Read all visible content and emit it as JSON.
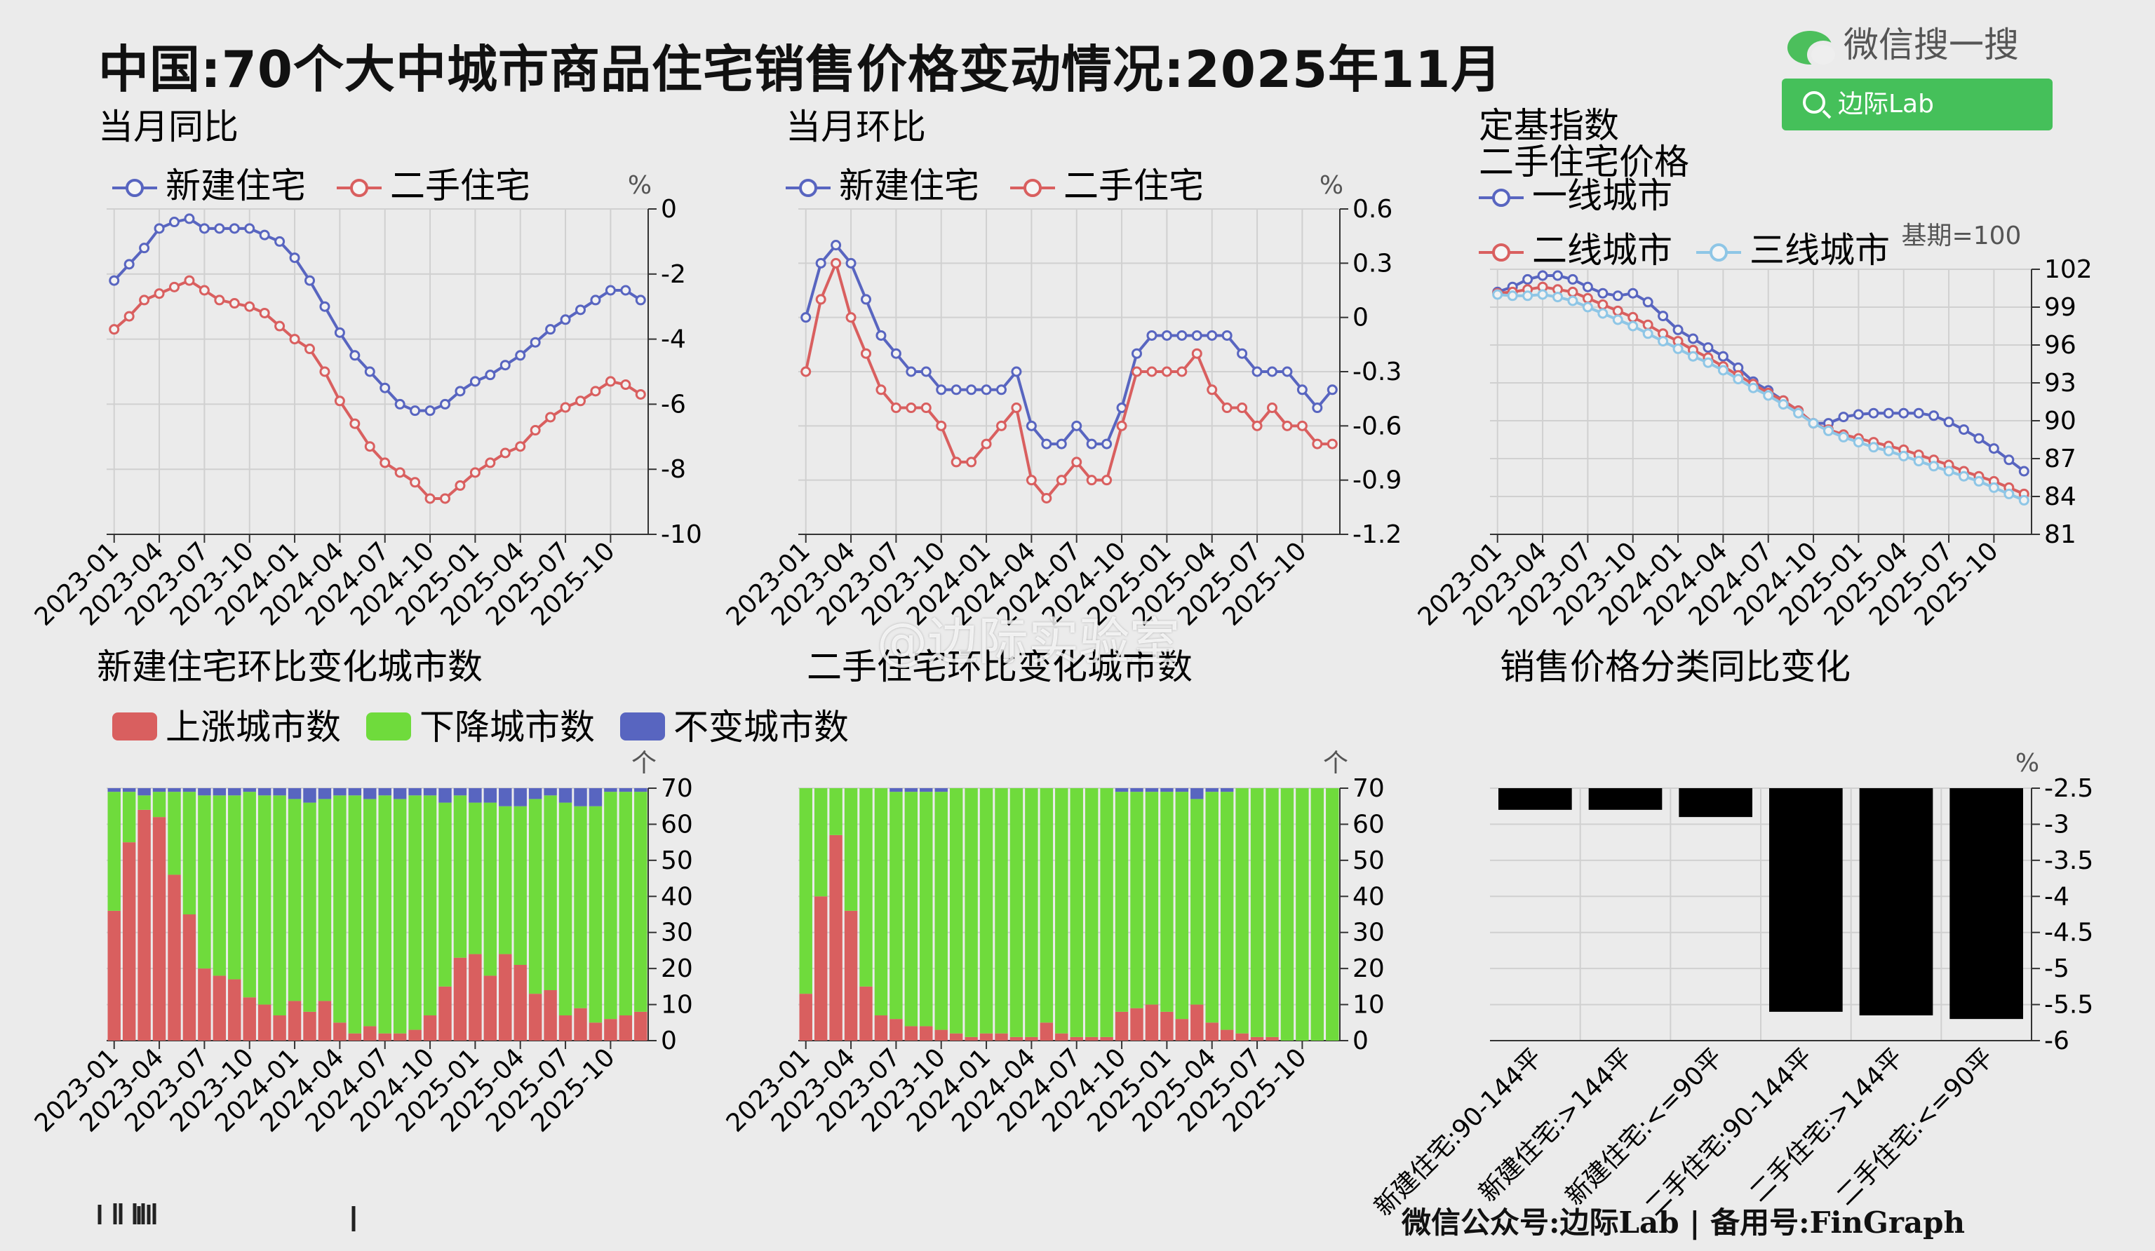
{
  "page": {
    "title": "中国:70个大中城市商品住宅销售价格变动情况:2025年11月",
    "wechat_label": "微信搜一搜",
    "search_label": "边际Lab",
    "watermark": "@边际实验室",
    "footer": "微信公众号:边际Lab | 备用号:FinGraph",
    "colors": {
      "blue": "#5865c0",
      "red": "#d95f5f",
      "lightblue": "#8ec6e6",
      "green": "#6fdb3c",
      "black": "#000000",
      "wechat_green": "#45c05a"
    }
  },
  "chart_data": [
    {
      "id": "yoy",
      "type": "line",
      "title": "当月同比",
      "unit": "%",
      "ylim": [
        -10,
        0
      ],
      "yticks": [
        0,
        -2,
        -4,
        -6,
        -8,
        -10
      ],
      "x_tick_labels": [
        "2023-01",
        "2023-04",
        "2023-07",
        "2023-10",
        "2024-01",
        "2024-04",
        "2024-07",
        "2024-10",
        "2025-01",
        "2025-04",
        "2025-07",
        "2025-10"
      ],
      "series": [
        {
          "name": "新建住宅",
          "color": "#5865c0",
          "values": [
            -2.2,
            -1.7,
            -1.2,
            -0.6,
            -0.4,
            -0.3,
            -0.6,
            -0.6,
            -0.6,
            -0.6,
            -0.8,
            -1.0,
            -1.5,
            -2.2,
            -3.0,
            -3.8,
            -4.5,
            -5.0,
            -5.5,
            -6.0,
            -6.2,
            -6.2,
            -6.0,
            -5.6,
            -5.3,
            -5.1,
            -4.8,
            -4.5,
            -4.1,
            -3.7,
            -3.4,
            -3.1,
            -2.8,
            -2.5,
            -2.5,
            -2.8
          ]
        },
        {
          "name": "二手住宅",
          "color": "#d95f5f",
          "values": [
            -3.7,
            -3.3,
            -2.8,
            -2.6,
            -2.4,
            -2.2,
            -2.5,
            -2.8,
            -2.9,
            -3.0,
            -3.2,
            -3.6,
            -4.0,
            -4.3,
            -5.0,
            -5.9,
            -6.6,
            -7.3,
            -7.8,
            -8.1,
            -8.4,
            -8.9,
            -8.9,
            -8.5,
            -8.1,
            -7.8,
            -7.5,
            -7.3,
            -6.8,
            -6.4,
            -6.1,
            -5.9,
            -5.6,
            -5.3,
            -5.4,
            -5.7
          ]
        }
      ]
    },
    {
      "id": "mom",
      "type": "line",
      "title": "当月环比",
      "unit": "%",
      "ylim": [
        -1.2,
        0.6
      ],
      "yticks": [
        0.6,
        0.3,
        0,
        -0.3,
        -0.6,
        -0.9,
        -1.2
      ],
      "x_tick_labels": [
        "2023-01",
        "2023-04",
        "2023-07",
        "2023-10",
        "2024-01",
        "2024-04",
        "2024-07",
        "2024-10",
        "2025-01",
        "2025-04",
        "2025-07",
        "2025-10"
      ],
      "series": [
        {
          "name": "新建住宅",
          "color": "#5865c0",
          "values": [
            0.0,
            0.3,
            0.4,
            0.3,
            0.1,
            -0.1,
            -0.2,
            -0.3,
            -0.3,
            -0.4,
            -0.4,
            -0.4,
            -0.4,
            -0.4,
            -0.3,
            -0.6,
            -0.7,
            -0.7,
            -0.6,
            -0.7,
            -0.7,
            -0.5,
            -0.2,
            -0.1,
            -0.1,
            -0.1,
            -0.1,
            -0.1,
            -0.1,
            -0.2,
            -0.3,
            -0.3,
            -0.3,
            -0.4,
            -0.5,
            -0.4
          ]
        },
        {
          "name": "二手住宅",
          "color": "#d95f5f",
          "values": [
            -0.3,
            0.1,
            0.3,
            0.0,
            -0.2,
            -0.4,
            -0.5,
            -0.5,
            -0.5,
            -0.6,
            -0.8,
            -0.8,
            -0.7,
            -0.6,
            -0.5,
            -0.9,
            -1.0,
            -0.9,
            -0.8,
            -0.9,
            -0.9,
            -0.6,
            -0.3,
            -0.3,
            -0.3,
            -0.3,
            -0.2,
            -0.4,
            -0.5,
            -0.5,
            -0.6,
            -0.5,
            -0.6,
            -0.6,
            -0.7,
            -0.7
          ]
        }
      ]
    },
    {
      "id": "index",
      "type": "line",
      "title": "定基指数",
      "subtitle": "二手住宅价格",
      "unit": "基期=100",
      "ylim": [
        81,
        102
      ],
      "yticks": [
        102,
        99,
        96,
        93,
        90,
        87,
        84,
        81
      ],
      "x_tick_labels": [
        "2023-01",
        "2023-04",
        "2023-07",
        "2023-10",
        "2024-01",
        "2024-04",
        "2024-07",
        "2024-10",
        "2025-01",
        "2025-04",
        "2025-07",
        "2025-10"
      ],
      "series": [
        {
          "name": "一线城市",
          "color": "#5865c0",
          "values": [
            100.2,
            100.6,
            101.2,
            101.5,
            101.5,
            101.2,
            100.6,
            100.1,
            99.9,
            100.1,
            99.4,
            98.3,
            97.2,
            96.5,
            95.8,
            95.1,
            94.2,
            93.1,
            92.4,
            91.6,
            90.8,
            89.8,
            89.8,
            90.3,
            90.5,
            90.6,
            90.6,
            90.6,
            90.6,
            90.4,
            89.9,
            89.3,
            88.6,
            87.8,
            86.9,
            86.0
          ]
        },
        {
          "name": "二线城市",
          "color": "#d95f5f",
          "values": [
            100.1,
            100.2,
            100.4,
            100.6,
            100.4,
            100.2,
            99.7,
            99.2,
            98.7,
            98.2,
            97.6,
            96.9,
            96.3,
            95.6,
            95.0,
            94.3,
            93.6,
            92.9,
            92.2,
            91.6,
            90.8,
            89.8,
            89.3,
            88.9,
            88.6,
            88.3,
            88.0,
            87.7,
            87.3,
            86.9,
            86.5,
            86.0,
            85.6,
            85.2,
            84.7,
            84.2
          ]
        },
        {
          "name": "三线城市",
          "color": "#8ec6e6",
          "values": [
            100.0,
            99.9,
            99.9,
            100.0,
            99.8,
            99.5,
            99.0,
            98.5,
            98.0,
            97.5,
            96.9,
            96.3,
            95.7,
            95.1,
            94.6,
            94.0,
            93.3,
            92.6,
            92.0,
            91.3,
            90.6,
            89.8,
            89.2,
            88.7,
            88.3,
            87.9,
            87.6,
            87.2,
            86.8,
            86.4,
            86.0,
            85.6,
            85.2,
            84.7,
            84.2,
            83.7
          ]
        }
      ]
    },
    {
      "id": "new_counts",
      "type": "bar",
      "stacked": true,
      "title": "新建住宅环比变化城市数",
      "unit": "个",
      "ylim": [
        0,
        70
      ],
      "yticks": [
        70,
        60,
        50,
        40,
        30,
        20,
        10,
        0
      ],
      "x_tick_labels": [
        "2023-01",
        "2023-04",
        "2023-07",
        "2023-10",
        "2024-01",
        "2024-04",
        "2024-07",
        "2024-10",
        "2025-01",
        "2025-04",
        "2025-07",
        "2025-10"
      ],
      "series": [
        {
          "name": "上涨城市数",
          "color": "#d95f5f",
          "values": [
            36,
            55,
            64,
            62,
            46,
            35,
            20,
            18,
            17,
            12,
            10,
            7,
            11,
            8,
            11,
            5,
            2,
            4,
            2,
            2,
            3,
            7,
            15,
            23,
            24,
            18,
            24,
            21,
            13,
            14,
            7,
            9,
            5,
            6,
            7,
            8
          ]
        },
        {
          "name": "下降城市数",
          "color": "#6fdb3c",
          "values": [
            33,
            14,
            4,
            7,
            23,
            34,
            48,
            50,
            51,
            57,
            58,
            61,
            56,
            58,
            56,
            63,
            66,
            63,
            66,
            65,
            65,
            61,
            51,
            45,
            42,
            48,
            41,
            44,
            54,
            54,
            59,
            56,
            60,
            63,
            62,
            61
          ]
        },
        {
          "name": "不变城市数",
          "color": "#5865c0",
          "values": [
            1,
            1,
            2,
            1,
            1,
            1,
            2,
            2,
            2,
            1,
            2,
            2,
            3,
            4,
            3,
            2,
            2,
            3,
            2,
            3,
            2,
            2,
            4,
            2,
            4,
            4,
            5,
            5,
            3,
            2,
            4,
            5,
            5,
            1,
            1,
            1
          ]
        }
      ]
    },
    {
      "id": "second_counts",
      "type": "bar",
      "stacked": true,
      "title": "二手住宅环比变化城市数",
      "unit": "个",
      "ylim": [
        0,
        70
      ],
      "yticks": [
        70,
        60,
        50,
        40,
        30,
        20,
        10,
        0
      ],
      "x_tick_labels": [
        "2023-01",
        "2023-04",
        "2023-07",
        "2023-10",
        "2024-01",
        "2024-04",
        "2024-07",
        "2024-10",
        "2025-01",
        "2025-04",
        "2025-07",
        "2025-10"
      ],
      "series": [
        {
          "name": "上涨城市数",
          "color": "#d95f5f",
          "values": [
            13,
            40,
            57,
            36,
            15,
            7,
            6,
            4,
            4,
            3,
            2,
            1,
            2,
            2,
            1,
            1,
            5,
            2,
            1,
            1,
            1,
            8,
            9,
            10,
            8,
            6,
            10,
            5,
            3,
            2,
            1,
            1,
            0,
            0,
            0,
            0
          ]
        },
        {
          "name": "下降城市数",
          "color": "#6fdb3c",
          "values": [
            57,
            30,
            13,
            34,
            55,
            63,
            63,
            65,
            65,
            66,
            68,
            69,
            68,
            68,
            69,
            69,
            65,
            68,
            69,
            69,
            69,
            61,
            60,
            59,
            61,
            63,
            57,
            64,
            66,
            68,
            69,
            69,
            70,
            70,
            70,
            70
          ]
        },
        {
          "name": "不变城市数",
          "color": "#5865c0",
          "values": [
            0,
            0,
            0,
            0,
            0,
            0,
            1,
            1,
            1,
            1,
            0,
            0,
            0,
            0,
            0,
            0,
            0,
            0,
            0,
            0,
            0,
            1,
            1,
            1,
            1,
            1,
            3,
            1,
            1,
            0,
            0,
            0,
            0,
            0,
            0,
            0
          ]
        }
      ]
    },
    {
      "id": "categories",
      "type": "bar",
      "title": "销售价格分类同比变化",
      "unit": "%",
      "ylim": [
        -6,
        -2.5
      ],
      "yticks": [
        -2.5,
        -3,
        -3.5,
        -4,
        -4.5,
        -5,
        -5.5,
        -6
      ],
      "categories": [
        "新建住宅:90-144平",
        "新建住宅:>144平",
        "新建住宅:<=90平",
        "二手住宅:90-144平",
        "二手住宅:>144平",
        "二手住宅:<=90平"
      ],
      "values": [
        -2.8,
        -2.8,
        -2.9,
        -5.6,
        -5.65,
        -5.7
      ],
      "color": "#000000"
    }
  ]
}
